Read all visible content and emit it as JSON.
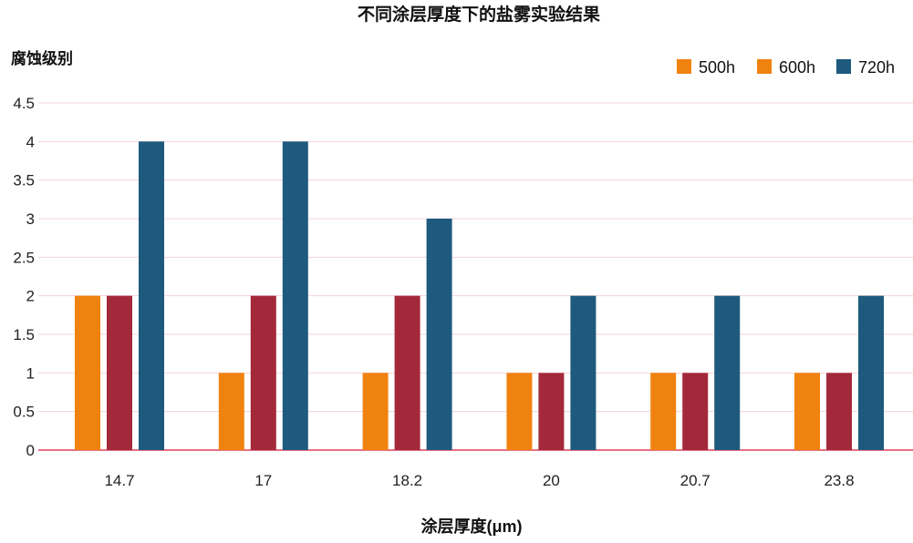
{
  "chart_data": {
    "type": "bar",
    "title": "不同涂层厚度下的盐雾实验结果",
    "xlabel": "涂层厚度(μm)",
    "ylabel": "腐蚀级别",
    "categories": [
      "14.7",
      "17",
      "18.2",
      "20",
      "20.7",
      "23.8"
    ],
    "series": [
      {
        "name": "500h",
        "values": [
          2,
          1,
          1,
          1,
          1,
          1
        ],
        "color": "#f0820f",
        "legend_color": "#f0820f"
      },
      {
        "name": "600h",
        "values": [
          2,
          2,
          2,
          1,
          1,
          1
        ],
        "color": "#a3293a",
        "legend_color": "#f0820f"
      },
      {
        "name": "720h",
        "values": [
          4,
          4,
          3,
          2,
          2,
          2
        ],
        "color": "#1e5a7d",
        "legend_color": "#1e5a7d"
      }
    ],
    "yticks": [
      "0",
      "0.5",
      "1",
      "1.5",
      "2",
      "2.5",
      "3",
      "3.5",
      "4",
      "4.5"
    ],
    "ylim": [
      0,
      4.5
    ],
    "grid": true,
    "gridline_color": "#f5d3d8",
    "axis_color": "#e0405a",
    "legend_position": "top-right"
  }
}
